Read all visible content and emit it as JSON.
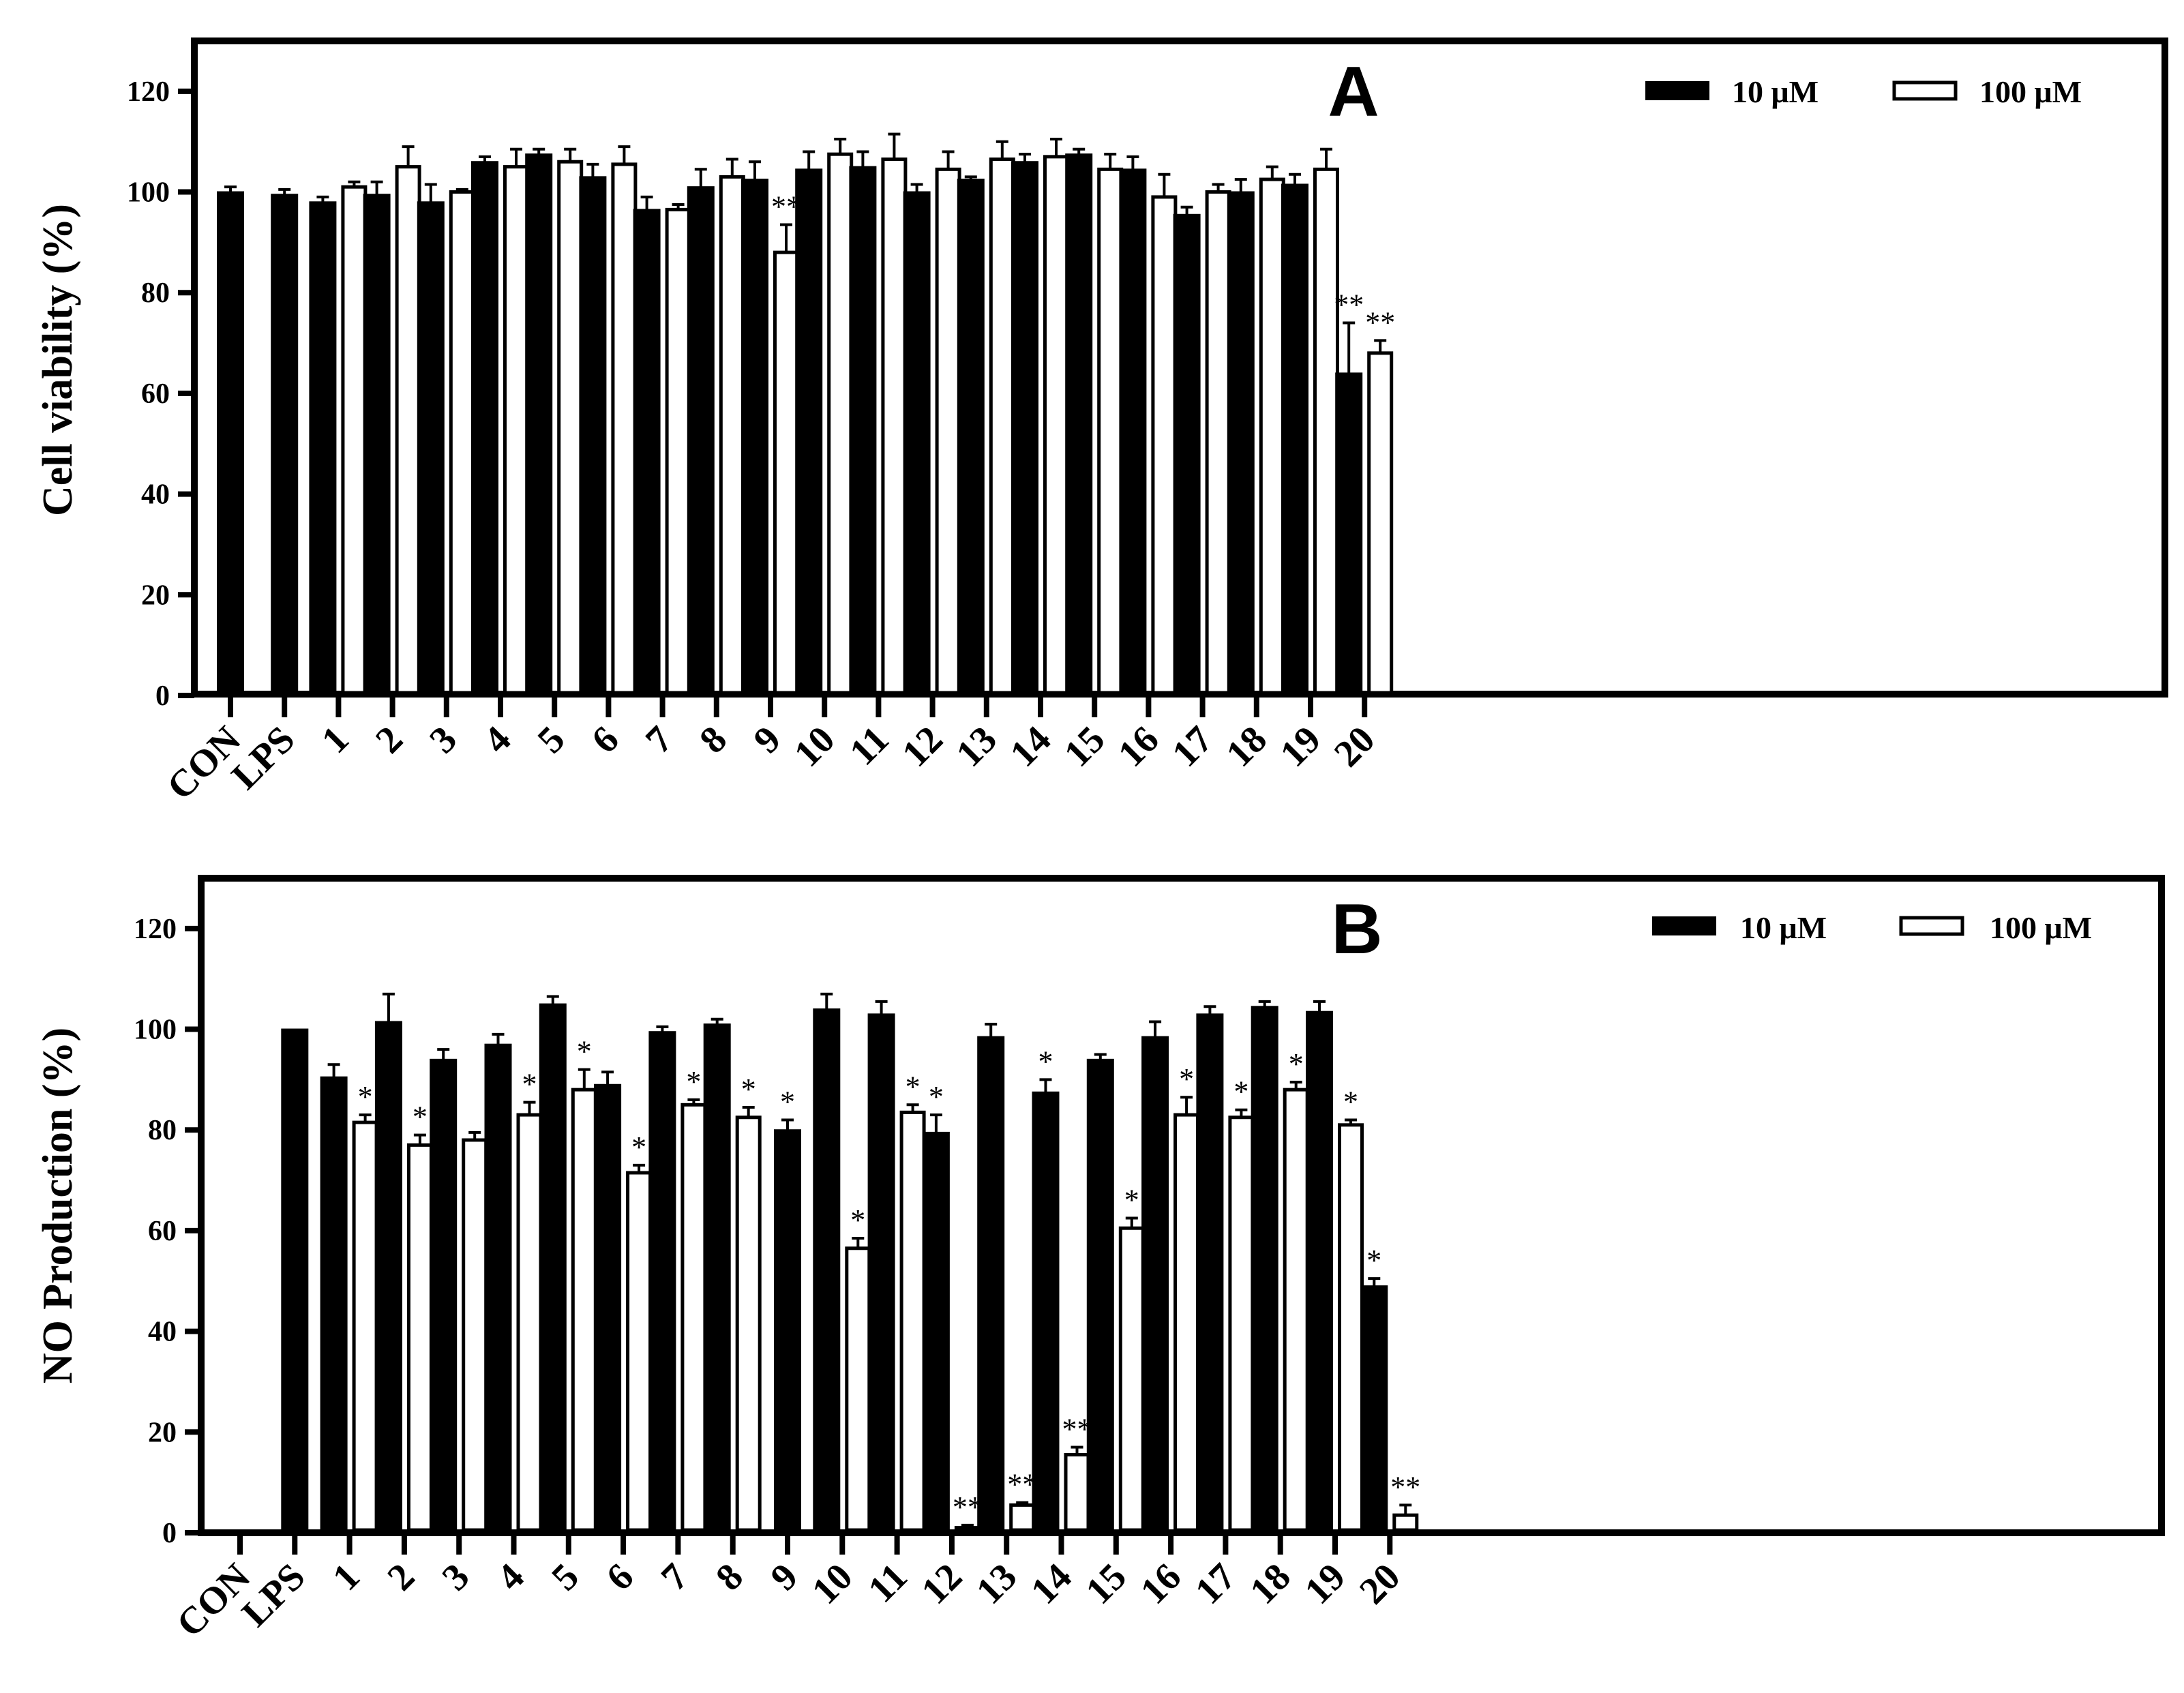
{
  "chart_data": [
    {
      "type": "bar",
      "panel": "A",
      "ylabel": "Cell viability (%)",
      "xlabel": "",
      "ylim": [
        0,
        130
      ],
      "yticks": [
        0,
        20,
        40,
        60,
        80,
        100,
        120
      ],
      "categories": [
        "CON",
        "LPS",
        "1",
        "2",
        "3",
        "4",
        "5",
        "6",
        "7",
        "8",
        "9",
        "10",
        "11",
        "12",
        "13",
        "14",
        "15",
        "16",
        "17",
        "18",
        "19",
        "20"
      ],
      "legend": {
        "position": "top-right"
      },
      "series": [
        {
          "name": "10 μM",
          "fill": "#000000",
          "values": [
            100,
            99.5,
            98,
            99.5,
            98,
            106,
            107.5,
            103,
            96.5,
            101,
            102.5,
            104.5,
            105,
            100,
            102.5,
            106,
            107.5,
            104.5,
            95.5,
            100,
            101.5,
            64
          ],
          "errors": [
            1,
            1,
            1,
            2.5,
            3.5,
            1,
            1,
            2.5,
            2.5,
            3.5,
            3.5,
            3.5,
            3,
            1.5,
            0.5,
            1.5,
            1,
            2.5,
            1.5,
            2.5,
            2,
            10
          ],
          "annotations": [
            "",
            "",
            "",
            "",
            "",
            "",
            "",
            "",
            "",
            "",
            "",
            "",
            "",
            "",
            "",
            "",
            "",
            "",
            "",
            "",
            "",
            "**"
          ]
        },
        {
          "name": "100 μM",
          "fill": "#ffffff",
          "values": [
            null,
            null,
            101,
            105,
            100,
            105,
            106,
            105.5,
            96.5,
            103,
            88,
            107.5,
            106.5,
            104.5,
            106.5,
            107,
            104.5,
            99,
            100,
            102.5,
            104.5,
            68
          ],
          "errors": [
            0,
            0,
            1,
            4,
            0.5,
            3.5,
            2.5,
            3.5,
            1,
            3.5,
            5.5,
            3,
            5,
            3.5,
            3.5,
            3.5,
            3,
            4.5,
            1.5,
            2.5,
            4,
            2.5
          ],
          "annotations": [
            "",
            "",
            "",
            "",
            "",
            "",
            "",
            "",
            "",
            "",
            "**",
            "",
            "",
            "",
            "",
            "",
            "",
            "",
            "",
            "",
            "",
            "**"
          ]
        }
      ]
    },
    {
      "type": "bar",
      "panel": "B",
      "ylabel": "NO Production (%)",
      "xlabel": "",
      "ylim": [
        0,
        130
      ],
      "yticks": [
        0,
        20,
        40,
        60,
        80,
        100,
        120
      ],
      "categories": [
        "CON",
        "LPS",
        "1",
        "2",
        "3",
        "4",
        "5",
        "6",
        "7",
        "8",
        "9",
        "10",
        "11",
        "12",
        "13",
        "14",
        "15",
        "16",
        "17",
        "18",
        "19",
        "20"
      ],
      "legend": {
        "position": "top-right"
      },
      "series": [
        {
          "name": "10 μM",
          "fill": "#000000",
          "values": [
            null,
            100,
            90.5,
            101.5,
            94,
            97,
            105,
            89,
            99.5,
            101,
            80,
            104,
            103,
            79.5,
            98.5,
            87.5,
            94,
            98.5,
            103,
            104.5,
            103.5,
            49
          ],
          "errors": [
            0,
            0,
            2.5,
            5.5,
            2,
            2,
            1.5,
            2.5,
            1,
            1,
            2,
            3,
            2.5,
            3.5,
            2.5,
            2.5,
            1,
            3,
            1.5,
            1,
            2,
            1.5
          ],
          "annotations": [
            "",
            "",
            "",
            "",
            "",
            "",
            "",
            "",
            "",
            "",
            "*",
            "",
            "",
            "*",
            "",
            "*",
            "",
            "",
            "",
            "",
            "",
            "*"
          ]
        },
        {
          "name": "100 μM",
          "fill": "#ffffff",
          "values": [
            null,
            null,
            81.5,
            77,
            78,
            83,
            88,
            71.5,
            85,
            82.5,
            null,
            56.5,
            83.5,
            1,
            5.5,
            15.5,
            60.5,
            83,
            82.5,
            88,
            81,
            3.5
          ],
          "errors": [
            0,
            0,
            1.5,
            2,
            1.5,
            2.5,
            4,
            1.5,
            1,
            2,
            0,
            2,
            1.5,
            0.5,
            0.5,
            1.5,
            2,
            3.5,
            1.5,
            1.5,
            1,
            2
          ],
          "annotations": [
            "",
            "",
            "*",
            "*",
            "",
            "*",
            "*",
            "*",
            "*",
            "*",
            "",
            "*",
            "*",
            "**",
            "**",
            "**",
            "*",
            "*",
            "*",
            "*",
            "*",
            "**"
          ]
        }
      ]
    }
  ]
}
